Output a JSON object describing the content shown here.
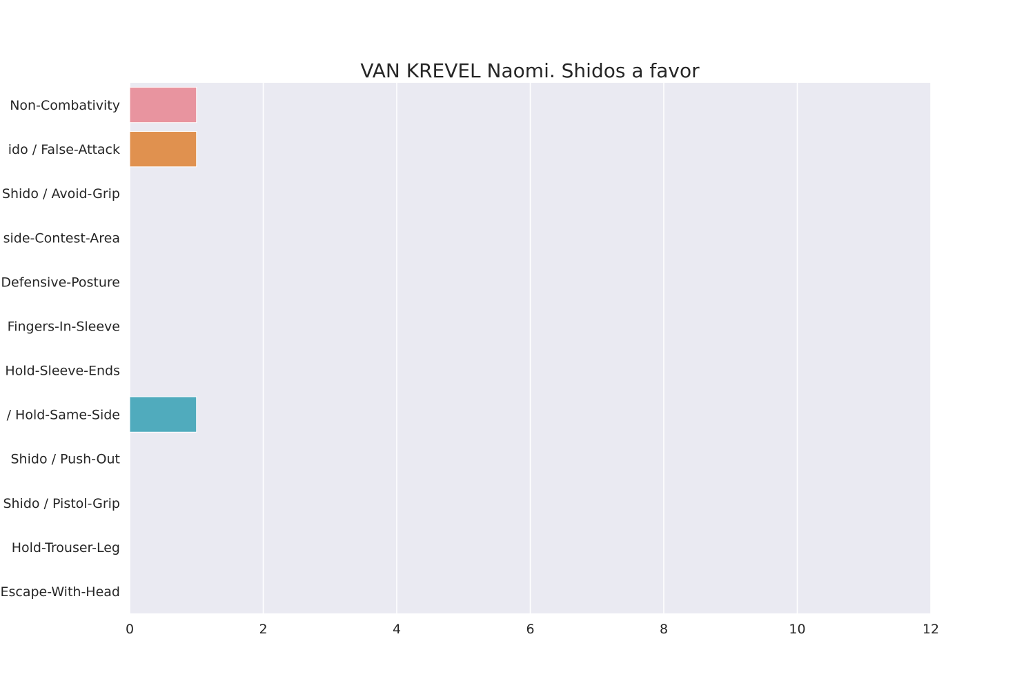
{
  "chart_data": {
    "type": "bar",
    "orientation": "horizontal",
    "title": "VAN KREVEL Naomi. Shidos a favor",
    "xlabel": "",
    "ylabel": "",
    "xlim": [
      0,
      12
    ],
    "x_ticks": [
      "0",
      "2",
      "4",
      "6",
      "8",
      "10",
      "12"
    ],
    "grid": true,
    "categories": [
      "Non-Combativity",
      "ido / False-Attack",
      "Shido / Avoid-Grip",
      "side-Contest-Area",
      "Defensive-Posture",
      "Fingers-In-Sleeve",
      "Hold-Sleeve-Ends",
      "/ Hold-Same-Side",
      "Shido / Push-Out",
      "Shido / Pistol-Grip",
      "Hold-Trouser-Leg",
      "Escape-With-Head"
    ],
    "values": [
      1,
      1,
      0,
      0,
      0,
      0,
      0,
      1,
      0,
      0,
      0,
      0
    ],
    "colors": [
      "#e8949f",
      "#e0914f",
      "#c9a24a",
      "#a8b04a",
      "#6fb04a",
      "#4ab07a",
      "#4ab0a0",
      "#50abbd",
      "#6fa3d8",
      "#a69be0",
      "#d38fd8",
      "#e88fbd"
    ],
    "plot_background": "#eaeaf2",
    "grid_color": "#ffffff"
  }
}
